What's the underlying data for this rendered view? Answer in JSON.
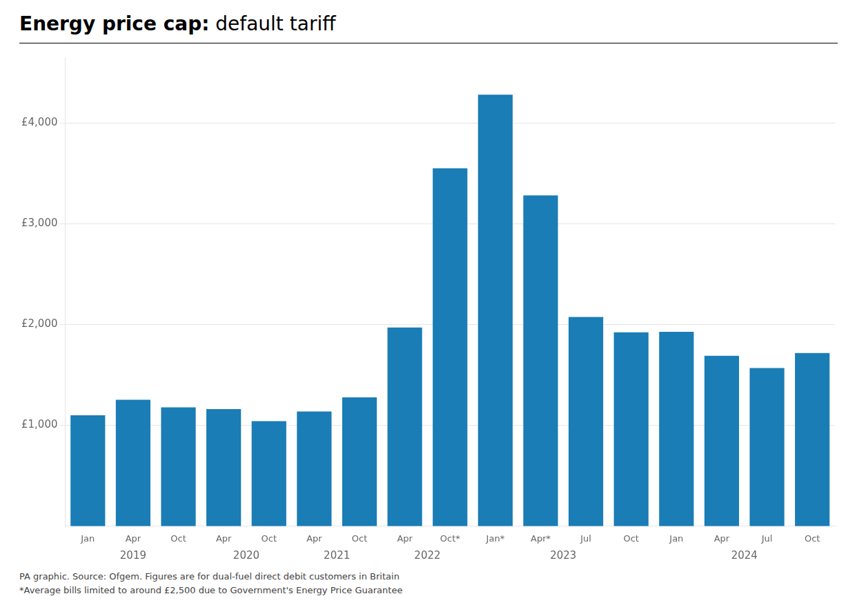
{
  "chart_data": {
    "type": "bar",
    "title": "Energy price cap:",
    "subtitle": "default tariff",
    "categories": [
      "Jan",
      "Apr",
      "Oct",
      "Apr",
      "Oct",
      "Apr",
      "Oct",
      "Apr",
      "Oct*",
      "Jan*",
      "Apr*",
      "Jul",
      "Oct",
      "Jan",
      "Apr",
      "Jul",
      "Oct"
    ],
    "groups": [
      "2019",
      "2019",
      "2019",
      "2020",
      "2020",
      "2021",
      "2021",
      "2022",
      "2022",
      "2023",
      "2023",
      "2023",
      "2023",
      "2024",
      "2024",
      "2024",
      "2024"
    ],
    "values": [
      1100,
      1254,
      1179,
      1162,
      1042,
      1138,
      1277,
      1971,
      3549,
      4279,
      3280,
      2074,
      1923,
      1928,
      1690,
      1568,
      1717
    ],
    "color": "#1a7db5",
    "ylim": [
      0,
      4650
    ],
    "yticks": [
      {
        "value": 1000,
        "label": "£1,000"
      },
      {
        "value": 2000,
        "label": "£2,000"
      },
      {
        "value": 3000,
        "label": "£3,000"
      },
      {
        "value": 4000,
        "label": "£4,000"
      }
    ],
    "grid": true,
    "annotations": [
      "PA graphic. Source: Ofgem. Figures are for dual-fuel direct debit customers in Britain",
      "*Average bills limited to around £2,500 due to Government's Energy Price Guarantee"
    ]
  }
}
